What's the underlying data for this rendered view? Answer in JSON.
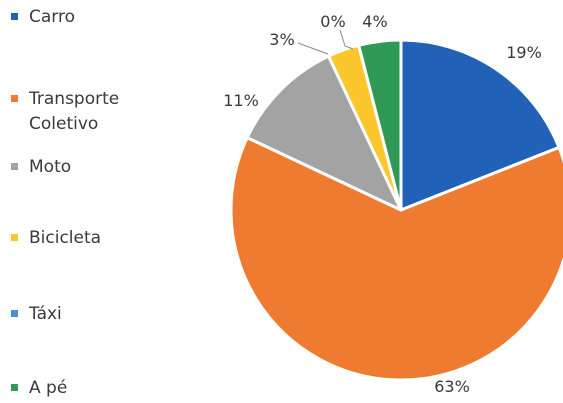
{
  "chart_data": {
    "type": "pie",
    "title": "",
    "categories": [
      "Carro",
      "Transporte Coletivo",
      "Moto",
      "Bicicleta",
      "Táxi",
      "A pé"
    ],
    "values": [
      19,
      63,
      11,
      3,
      0,
      4
    ],
    "value_labels": [
      "19%",
      "63%",
      "11%",
      "3%",
      "0%",
      "4%"
    ],
    "colors": [
      "#2162b8",
      "#ee7b30",
      "#a3a3a3",
      "#fbc72d",
      "#4a8fd0",
      "#2f9a55"
    ],
    "legend_position": "left",
    "legend": [
      {
        "lines": [
          "Carro"
        ]
      },
      {
        "lines": [
          "Transporte",
          "Coletivo"
        ]
      },
      {
        "lines": [
          "Moto"
        ]
      },
      {
        "lines": [
          "Bicicleta"
        ]
      },
      {
        "lines": [
          "Táxi"
        ]
      },
      {
        "lines": [
          "A pé"
        ]
      }
    ]
  }
}
